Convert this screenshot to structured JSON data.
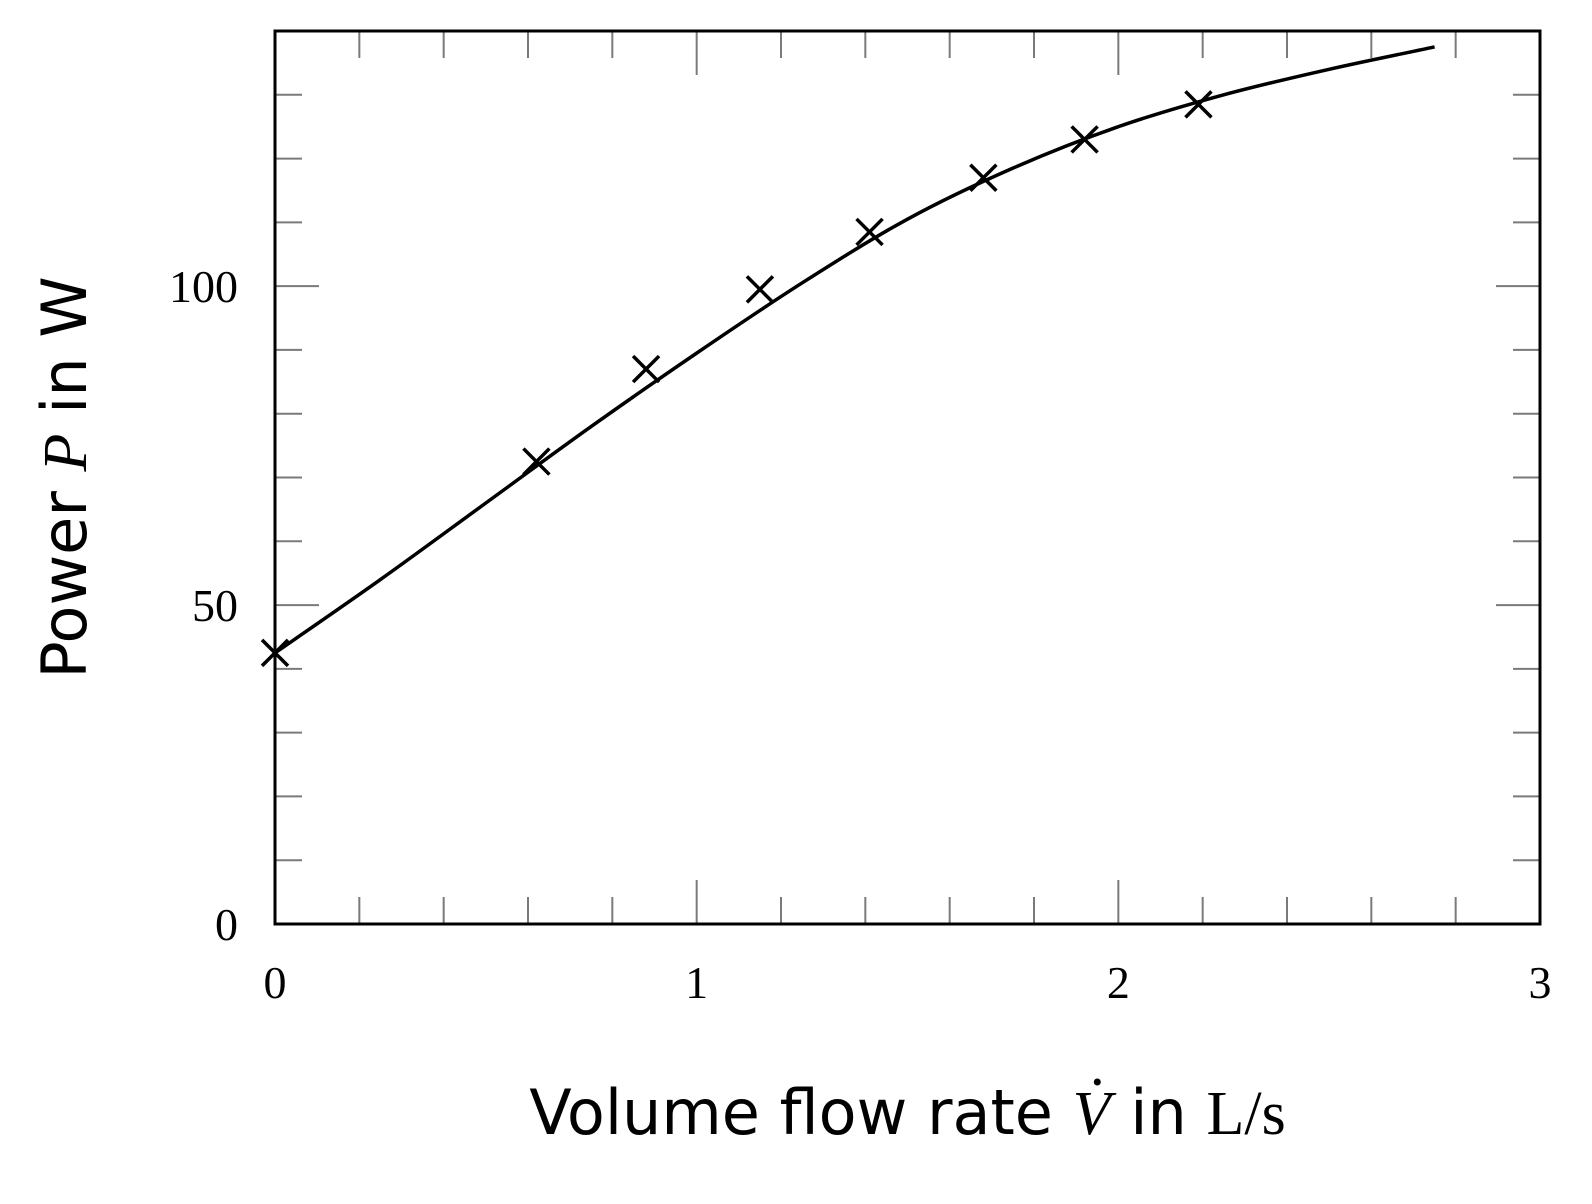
{
  "chart_data": {
    "type": "scatter",
    "title": "",
    "xlabel": {
      "prefix": "Volume flow rate ",
      "symbol": "V",
      "connector": " in ",
      "unit": "L/s"
    },
    "ylabel": {
      "prefix": "Power ",
      "symbol": "P",
      "connector": " in ",
      "unit": "W"
    },
    "xlim": [
      0,
      3
    ],
    "ylim": [
      0,
      140
    ],
    "xticks": [
      0,
      1,
      2,
      3
    ],
    "yticks": [
      0,
      50,
      100
    ],
    "x_minor_step": 0.2,
    "y_minor_step": 10,
    "grid": false,
    "marker": "x",
    "color": "#000000",
    "series": [
      {
        "type": "scatter",
        "x": [
          0.0,
          0.62,
          0.88,
          1.15,
          1.41,
          1.68,
          1.92,
          2.19
        ],
        "y": [
          42.5,
          72.5,
          87.0,
          99.5,
          108.5,
          117.0,
          123.0,
          128.5
        ]
      },
      {
        "type": "line",
        "x": [
          0.0,
          0.25,
          0.5,
          0.75,
          1.0,
          1.25,
          1.5,
          1.75,
          2.0,
          2.25,
          2.5,
          2.75
        ],
        "y": [
          42.5,
          54.0,
          66.0,
          78.0,
          89.5,
          100.5,
          110.5,
          118.5,
          125.0,
          130.0,
          134.0,
          137.5
        ]
      }
    ]
  }
}
